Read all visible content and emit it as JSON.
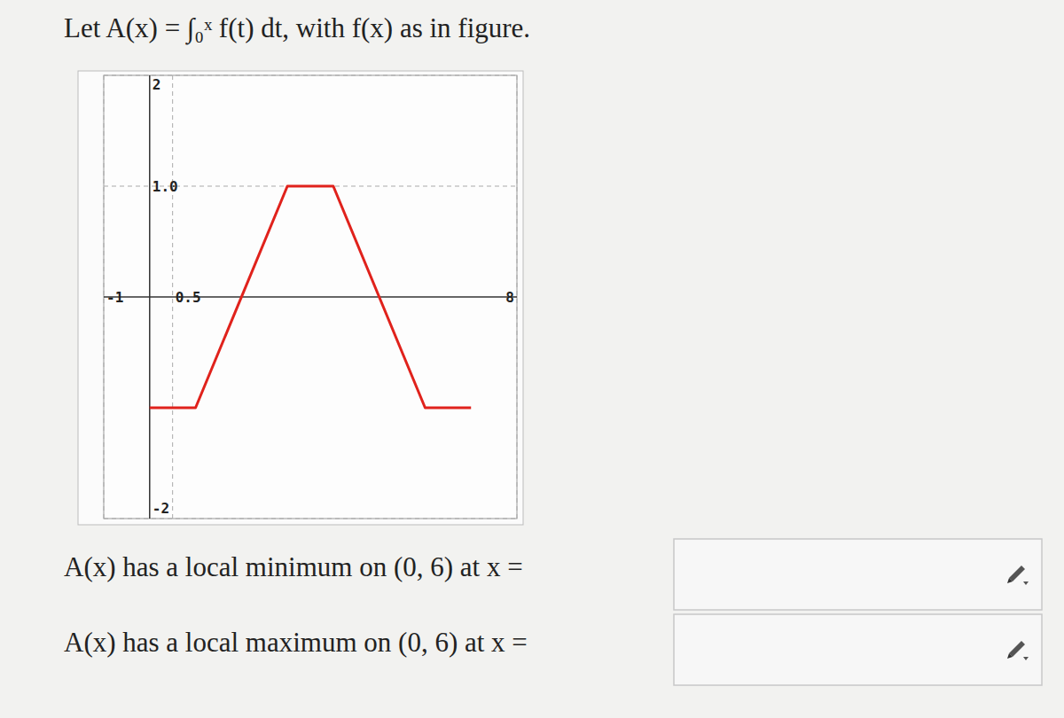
{
  "chart_data": {
    "type": "line",
    "title": "Let A(x) = ∫₀ˣ f(t) dt, with f(x) as in figure.",
    "x": [
      0,
      1,
      3,
      4,
      6,
      7
    ],
    "values": [
      -1,
      -1,
      1,
      1,
      -1,
      -1
    ],
    "color": "#e0221c",
    "xlim": [
      -1,
      8
    ],
    "xticks": [
      -1,
      0.5,
      8
    ],
    "ylim": [
      -2,
      2
    ],
    "yticks": [
      -2,
      {
        "value": 1,
        "label": "1.0"
      },
      2
    ],
    "grid": true,
    "annotations": [
      "A(x) has a local minimum on (0, 6) at x =",
      "A(x) has a local maximum on (0, 6) at x ="
    ]
  }
}
